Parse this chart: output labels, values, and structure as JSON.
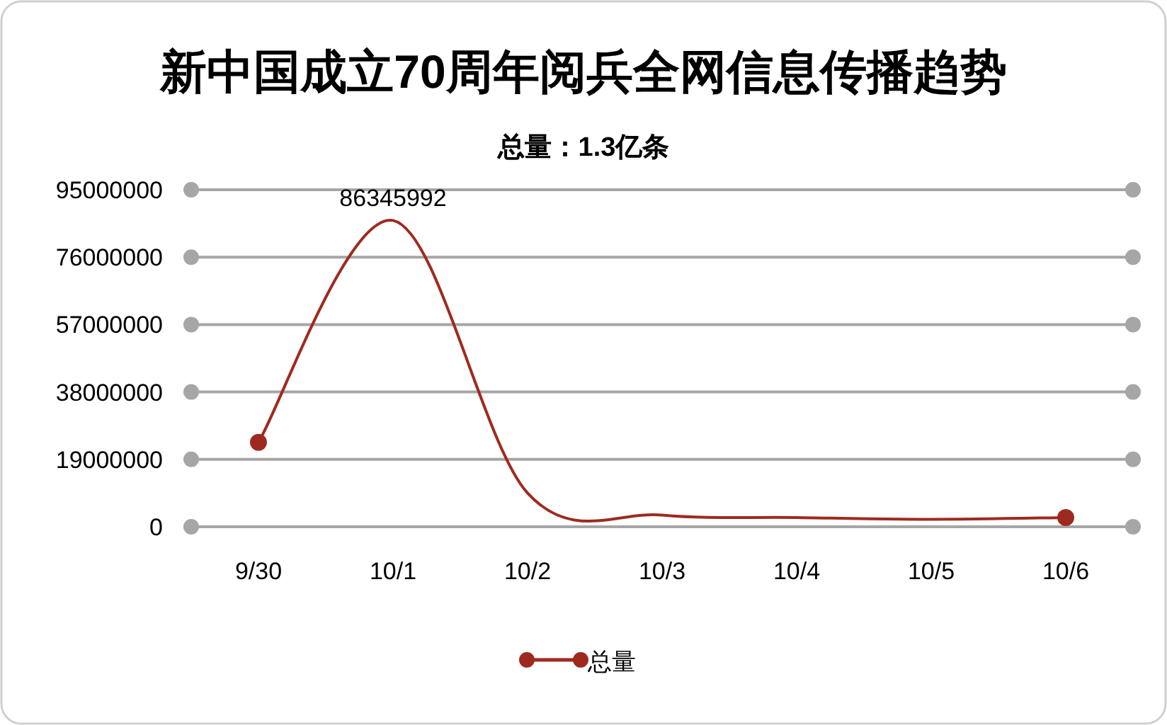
{
  "chart_data": {
    "type": "line",
    "title": "新中国成立70周年阅兵全网信息传播趋势",
    "subtitle": "总量：1.3亿条",
    "categories": [
      "9/30",
      "10/1",
      "10/2",
      "10/3",
      "10/4",
      "10/5",
      "10/6"
    ],
    "series": [
      {
        "name": "总量",
        "color": "#9e2a1f",
        "values": [
          23800000,
          86345992,
          9500000,
          3300000,
          2600000,
          2100000,
          2600000
        ],
        "value_labels": [
          null,
          "86345992",
          null,
          null,
          null,
          null,
          null
        ]
      }
    ],
    "ylim": [
      0,
      95000000
    ],
    "yticks": [
      0,
      19000000,
      38000000,
      57000000,
      76000000,
      95000000
    ],
    "grid": "y",
    "legend": "bottom",
    "line_style": "solid"
  }
}
